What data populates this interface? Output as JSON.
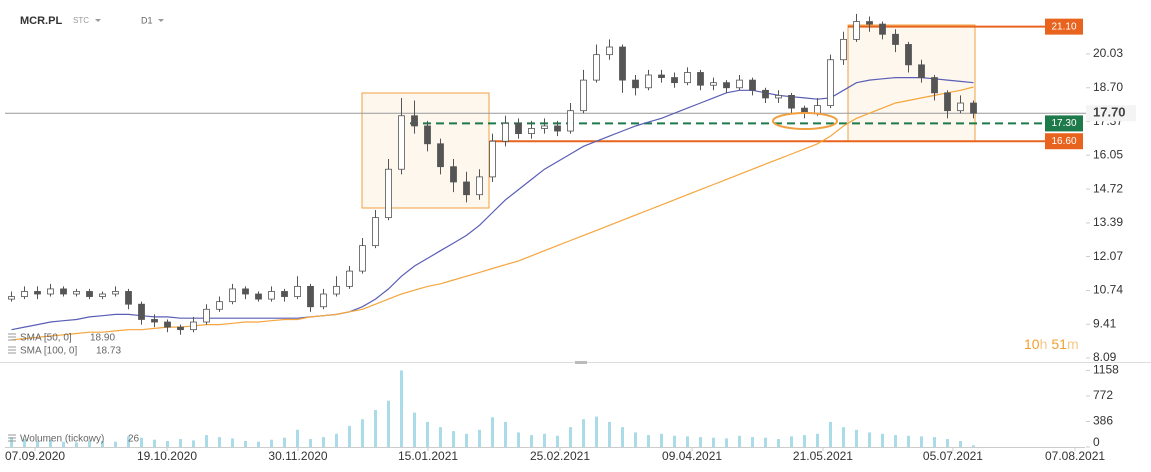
{
  "header": {
    "symbol": "MCR.PL",
    "account": "STC",
    "interval": "D1"
  },
  "timer": {
    "hours": "10",
    "h": "h",
    "minutes": "51",
    "m": "m"
  },
  "chart_data": [
    {
      "type": "candlestick",
      "xlim": [
        0,
        83
      ],
      "ylim": [
        7.93,
        21.95
      ],
      "yticks": [
        8.09,
        9.41,
        10.74,
        12.07,
        13.39,
        14.72,
        16.05,
        17.37,
        {
          "value": 18.7,
          "label": "18.70"
        },
        20.03
      ],
      "up_color": "#ffffff",
      "down_color": "#555555",
      "outline_color": "#555555",
      "open": [
        10.4,
        10.5,
        10.7,
        10.6,
        10.8,
        10.6,
        10.7,
        10.5,
        10.6,
        10.7,
        10.2,
        9.6,
        9.5,
        9.3,
        9.2,
        9.5,
        10.0,
        10.3,
        10.8,
        10.6,
        10.4,
        10.7,
        10.5,
        10.9,
        10.1,
        10.6,
        10.9,
        11.5,
        12.5,
        13.6,
        15.5,
        17.6,
        17.2,
        16.5,
        15.6,
        15.0,
        14.5,
        15.2,
        16.6,
        17.3,
        16.9,
        17.1,
        17.2,
        17.0,
        17.8,
        19.0,
        20.0,
        20.3,
        19.0,
        18.7,
        19.2,
        19.1,
        18.9,
        19.3,
        18.8,
        18.9,
        18.7,
        19.0,
        18.6,
        18.3,
        18.4,
        17.9,
        17.7,
        18.0,
        19.8,
        20.6,
        21.3,
        21.2,
        20.8,
        20.4,
        19.6,
        19.1,
        18.5,
        17.8,
        18.1
      ],
      "high": [
        10.7,
        10.9,
        10.9,
        11.0,
        10.9,
        10.8,
        10.8,
        10.7,
        10.9,
        10.8,
        10.3,
        9.8,
        9.6,
        9.4,
        9.7,
        10.2,
        10.5,
        11.0,
        10.9,
        10.7,
        10.9,
        10.8,
        11.3,
        11.0,
        10.8,
        11.3,
        11.7,
        12.8,
        13.9,
        15.9,
        18.3,
        18.2,
        17.4,
        16.7,
        15.9,
        15.4,
        15.5,
        16.9,
        17.6,
        17.5,
        17.4,
        17.5,
        17.4,
        18.1,
        19.4,
        20.4,
        20.6,
        20.4,
        19.2,
        19.4,
        19.4,
        19.3,
        19.5,
        19.4,
        19.1,
        19.0,
        19.2,
        19.1,
        18.7,
        18.6,
        18.5,
        18.0,
        18.3,
        20.0,
        20.9,
        21.6,
        21.5,
        21.3,
        21.0,
        20.5,
        19.8,
        19.2,
        18.6,
        18.4,
        18.2
      ],
      "low": [
        10.3,
        10.4,
        10.4,
        10.5,
        10.5,
        10.5,
        10.4,
        10.4,
        10.5,
        10.0,
        9.4,
        9.3,
        9.1,
        9.0,
        9.1,
        9.4,
        9.9,
        10.2,
        10.4,
        10.3,
        10.3,
        10.3,
        10.4,
        9.9,
        10.0,
        10.5,
        10.8,
        11.4,
        12.4,
        13.5,
        15.3,
        16.9,
        16.2,
        15.3,
        14.6,
        14.2,
        14.3,
        15.0,
        16.4,
        16.7,
        16.7,
        16.9,
        16.8,
        16.9,
        17.7,
        18.9,
        19.8,
        18.5,
        18.4,
        18.6,
        18.9,
        18.7,
        18.8,
        18.6,
        18.6,
        18.5,
        18.6,
        18.4,
        18.1,
        18.1,
        17.7,
        17.5,
        17.6,
        17.9,
        19.6,
        20.5,
        20.9,
        20.6,
        20.1,
        19.3,
        18.9,
        18.2,
        17.5,
        17.7,
        17.5
      ],
      "close": [
        10.5,
        10.7,
        10.6,
        10.8,
        10.6,
        10.7,
        10.5,
        10.6,
        10.7,
        10.2,
        9.6,
        9.5,
        9.3,
        9.2,
        9.5,
        10.0,
        10.3,
        10.8,
        10.6,
        10.4,
        10.7,
        10.5,
        10.9,
        10.1,
        10.6,
        10.9,
        11.5,
        12.5,
        13.6,
        15.5,
        17.6,
        17.2,
        16.5,
        15.6,
        15.0,
        14.5,
        15.2,
        16.6,
        17.3,
        16.9,
        17.1,
        17.2,
        17.0,
        17.8,
        19.0,
        20.0,
        20.3,
        19.0,
        18.7,
        19.2,
        19.1,
        18.9,
        19.3,
        18.8,
        18.9,
        18.7,
        19.0,
        18.6,
        18.3,
        18.4,
        17.9,
        17.7,
        18.0,
        19.8,
        20.6,
        21.3,
        21.2,
        20.8,
        20.4,
        19.6,
        19.1,
        18.5,
        17.8,
        18.1,
        17.7
      ],
      "series": [
        {
          "name": "SMA [50, 0]",
          "last_label": "18.90",
          "color": "#5a5eb5",
          "values": [
            9.2,
            9.3,
            9.4,
            9.5,
            9.55,
            9.6,
            9.7,
            9.75,
            9.8,
            9.8,
            9.75,
            9.7,
            9.7,
            9.65,
            9.65,
            9.65,
            9.65,
            9.65,
            9.65,
            9.65,
            9.65,
            9.65,
            9.65,
            9.7,
            9.75,
            9.8,
            9.9,
            10.1,
            10.4,
            10.8,
            11.3,
            11.7,
            12.0,
            12.3,
            12.6,
            12.9,
            13.3,
            13.8,
            14.3,
            14.7,
            15.1,
            15.5,
            15.8,
            16.1,
            16.4,
            16.6,
            16.8,
            17.0,
            17.2,
            17.35,
            17.5,
            17.7,
            17.9,
            18.1,
            18.3,
            18.5,
            18.6,
            18.6,
            18.5,
            18.4,
            18.35,
            18.3,
            18.25,
            18.3,
            18.6,
            18.9,
            19.0,
            19.05,
            19.1,
            19.1,
            19.1,
            19.05,
            19.0,
            18.95,
            18.9
          ]
        },
        {
          "name": "SMA [100, 0]",
          "last_label": "18.73",
          "color": "#f5a53c",
          "values": [
            8.8,
            8.85,
            8.9,
            8.95,
            9.0,
            9.05,
            9.1,
            9.1,
            9.15,
            9.2,
            9.2,
            9.25,
            9.3,
            9.3,
            9.35,
            9.4,
            9.4,
            9.45,
            9.5,
            9.5,
            9.55,
            9.6,
            9.6,
            9.7,
            9.75,
            9.8,
            9.9,
            10.0,
            10.2,
            10.4,
            10.6,
            10.75,
            10.9,
            11.0,
            11.15,
            11.3,
            11.45,
            11.6,
            11.75,
            11.9,
            12.1,
            12.3,
            12.5,
            12.7,
            12.9,
            13.1,
            13.3,
            13.5,
            13.7,
            13.9,
            14.1,
            14.3,
            14.5,
            14.7,
            14.9,
            15.1,
            15.3,
            15.5,
            15.7,
            15.9,
            16.1,
            16.3,
            16.5,
            16.8,
            17.2,
            17.5,
            17.7,
            17.9,
            18.1,
            18.2,
            18.3,
            18.4,
            18.5,
            18.6,
            18.73
          ]
        }
      ],
      "levels": [
        {
          "value": 21.1,
          "label": "21.10",
          "color": "#e8641e",
          "dashed": false
        },
        {
          "value": 17.3,
          "label": "17.30",
          "color": "#1e7a4a",
          "dashed": true
        },
        {
          "value": 16.6,
          "label": "16.60",
          "color": "#e8641e",
          "dashed": false
        }
      ],
      "current": {
        "value": 17.7,
        "label": "17.70",
        "color": "#999999"
      }
    },
    {
      "type": "bar",
      "xlim": [
        0,
        83
      ],
      "ylim": [
        0,
        1240
      ],
      "yticks": [
        0,
        386,
        772,
        1158
      ],
      "xticks": [
        {
          "value": 2.31,
          "label": "07.09.2020"
        },
        {
          "value": 12.46,
          "label": "19.10.2020"
        },
        {
          "value": 22.54,
          "label": "30.11.2020"
        },
        {
          "value": 32.54,
          "label": "15.01.2021"
        },
        {
          "value": 42.69,
          "label": "25.02.2021"
        },
        {
          "value": 52.85,
          "label": "09.04.2021"
        },
        {
          "value": 62.92,
          "label": "21.05.2021"
        },
        {
          "value": 72.92,
          "label": "05.07.2021"
        },
        {
          "value": 82.31,
          "label": "07.08.2021"
        }
      ],
      "series": [
        {
          "name": "Wolumen (tickowy)",
          "color": "#a9dbe8",
          "values": [
            150,
            120,
            90,
            110,
            80,
            70,
            100,
            90,
            80,
            160,
            140,
            110,
            90,
            120,
            100,
            180,
            150,
            130,
            90,
            80,
            110,
            140,
            260,
            120,
            150,
            200,
            320,
            420,
            560,
            700,
            1158,
            520,
            380,
            300,
            240,
            200,
            260,
            450,
            380,
            220,
            180,
            200,
            170,
            300,
            420,
            460,
            380,
            300,
            220,
            180,
            200,
            170,
            160,
            150,
            140,
            130,
            170,
            150,
            140,
            120,
            160,
            180,
            200,
            380,
            300,
            260,
            220,
            200,
            180,
            170,
            160,
            150,
            120,
            90,
            26
          ]
        }
      ]
    }
  ]
}
